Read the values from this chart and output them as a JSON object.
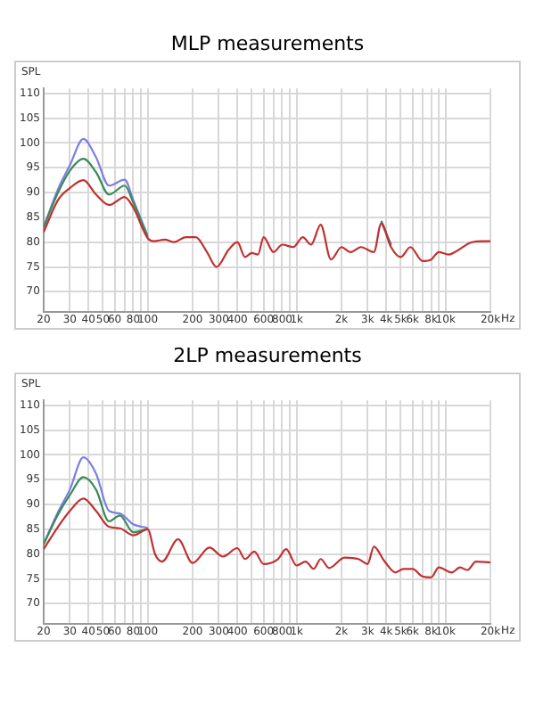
{
  "chart_data": [
    {
      "type": "line",
      "title": "MLP measurements",
      "ylabel": "SPL",
      "xlabel": "Hz",
      "log": "x",
      "grid": true,
      "legend": false,
      "marker": "none",
      "line_style": "solid",
      "xlim": [
        20,
        20000
      ],
      "ylim": [
        66,
        111
      ],
      "xticks": [
        20,
        30,
        40,
        50,
        60,
        {
          "value": 70,
          "label": null
        },
        80,
        {
          "value": 90,
          "label": null
        },
        100,
        200,
        300,
        400,
        {
          "value": 500,
          "label": null
        },
        600,
        {
          "value": 700,
          "label": null
        },
        800,
        {
          "value": 900,
          "label": null
        },
        {
          "value": 1000,
          "label": "1k"
        },
        {
          "value": 2000,
          "label": "2k"
        },
        {
          "value": 3000,
          "label": "3k"
        },
        {
          "value": 4000,
          "label": "4k"
        },
        {
          "value": 5000,
          "label": "5k"
        },
        {
          "value": 6000,
          "label": "6k"
        },
        {
          "value": 7000,
          "label": null
        },
        {
          "value": 8000,
          "label": "8k"
        },
        {
          "value": 9000,
          "label": null
        },
        {
          "value": 10000,
          "label": "10k"
        },
        {
          "value": 20000,
          "label": "20k"
        }
      ],
      "yticks": [
        70,
        75,
        80,
        85,
        90,
        95,
        100,
        105,
        110
      ],
      "x": [
        20,
        25,
        30,
        37,
        45,
        55,
        70,
        80,
        100,
        110,
        130,
        150,
        180,
        210,
        250,
        290,
        350,
        400,
        450,
        500,
        550,
        600,
        700,
        800,
        950,
        1100,
        1250,
        1450,
        1700,
        2000,
        2300,
        2700,
        3300,
        3700,
        4300,
        5000,
        5800,
        7000,
        8000,
        9000,
        10500,
        12000,
        15000,
        18000,
        20000
      ],
      "series": [
        {
          "color": "#7b7fe0",
          "x": [
            20,
            25,
            30,
            37,
            45,
            55,
            70,
            80,
            100,
            1000,
            3700,
            4300
          ],
          "values": [
            83,
            90.7,
            95.5,
            100.8,
            97.1,
            91.4,
            92.6,
            88.5,
            81.3,
            null,
            84,
            79.6
          ]
        },
        {
          "color": "#3a8a5a",
          "x": [
            20,
            25,
            30,
            37,
            45,
            55,
            70,
            80,
            100,
            1000,
            3700,
            4300
          ],
          "values": [
            83,
            90,
            94.4,
            96.8,
            94.1,
            89.6,
            91.4,
            88,
            81,
            null,
            84.3,
            79.3
          ]
        },
        {
          "color": "#c03030",
          "values": [
            82,
            88.5,
            90.9,
            92.5,
            89.6,
            87.5,
            89.1,
            87,
            80.8,
            80.2,
            80.5,
            80,
            81,
            81,
            78,
            75,
            78.5,
            80,
            77,
            77.8,
            77.5,
            81,
            78,
            79.5,
            79,
            81,
            79.5,
            83.5,
            76.5,
            79,
            78,
            79,
            78,
            83.8,
            79,
            77,
            79,
            76.2,
            76.5,
            78,
            77.5,
            78.3,
            80,
            80.2,
            80.2
          ]
        }
      ]
    },
    {
      "type": "line",
      "title": "2LP measurements",
      "ylabel": "SPL",
      "xlabel": "Hz",
      "log": "x",
      "grid": true,
      "legend": false,
      "marker": "none",
      "line_style": "solid",
      "xlim": [
        20,
        20000
      ],
      "ylim": [
        66,
        111
      ],
      "xticks": [
        20,
        30,
        40,
        50,
        60,
        {
          "value": 70,
          "label": null
        },
        80,
        {
          "value": 90,
          "label": null
        },
        100,
        200,
        300,
        400,
        {
          "value": 500,
          "label": null
        },
        600,
        {
          "value": 700,
          "label": null
        },
        800,
        {
          "value": 900,
          "label": null
        },
        {
          "value": 1000,
          "label": "1k"
        },
        {
          "value": 2000,
          "label": "2k"
        },
        {
          "value": 3000,
          "label": "3k"
        },
        {
          "value": 4000,
          "label": "4k"
        },
        {
          "value": 5000,
          "label": "5k"
        },
        {
          "value": 6000,
          "label": "6k"
        },
        {
          "value": 7000,
          "label": null
        },
        {
          "value": 8000,
          "label": "8k"
        },
        {
          "value": 9000,
          "label": null
        },
        {
          "value": 10000,
          "label": "10k"
        },
        {
          "value": 20000,
          "label": "20k"
        }
      ],
      "yticks": [
        70,
        75,
        80,
        85,
        90,
        95,
        100,
        105,
        110
      ],
      "x": [
        20,
        25,
        30,
        37,
        45,
        55,
        65,
        80,
        100,
        112,
        125,
        160,
        200,
        260,
        320,
        400,
        450,
        520,
        600,
        750,
        850,
        1000,
        1150,
        1300,
        1450,
        1650,
        2100,
        2600,
        3000,
        3300,
        3900,
        4600,
        5200,
        6000,
        7000,
        8000,
        9000,
        11000,
        12500,
        14000,
        16000,
        20000
      ],
      "series": [
        {
          "color": "#7b7fe0",
          "x": [
            20,
            25,
            30,
            37,
            45,
            55,
            65,
            80,
            100
          ],
          "values": [
            82,
            88.5,
            93,
            99.5,
            96.2,
            88.7,
            88.2,
            86,
            85.3
          ]
        },
        {
          "color": "#3a8a5a",
          "x": [
            20,
            25,
            30,
            37,
            45,
            55,
            65,
            80,
            100
          ],
          "values": [
            82,
            88,
            91.9,
            95.5,
            93,
            86.6,
            87.8,
            84.4,
            85.1
          ]
        },
        {
          "color": "#c03030",
          "values": [
            81,
            85.5,
            88.7,
            91.2,
            88.7,
            85.5,
            85.2,
            83.8,
            85,
            80,
            78.5,
            83,
            78.2,
            81.3,
            79.5,
            81.2,
            79,
            80.5,
            78,
            79,
            81,
            77.7,
            78.5,
            77,
            79,
            77.2,
            79.3,
            79,
            78,
            81.5,
            78.5,
            76.3,
            77,
            77,
            75.5,
            75.3,
            77.3,
            76.3,
            77.3,
            76.8,
            78.5,
            78.3
          ]
        }
      ]
    }
  ]
}
